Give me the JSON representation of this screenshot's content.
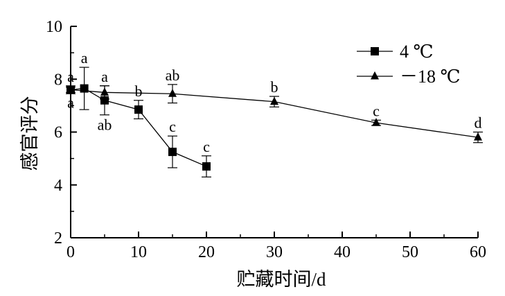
{
  "chart_data": {
    "type": "line",
    "title": "",
    "xlabel": "贮藏时间/d",
    "ylabel": "感官评分",
    "xlim": [
      0,
      60
    ],
    "ylim": [
      2,
      10
    ],
    "xticks": [
      0,
      10,
      20,
      30,
      40,
      50,
      60
    ],
    "yticks": [
      2,
      4,
      6,
      8,
      10
    ],
    "grid": false,
    "legend_position": "top-right",
    "series": [
      {
        "name": "4 ℃",
        "marker": "square",
        "points": [
          {
            "x": 0,
            "y": 7.6,
            "err": 0.15,
            "label": "a",
            "label_pos": "above"
          },
          {
            "x": 2,
            "y": 7.65,
            "err": 0.8,
            "label": "a",
            "label_pos": "above"
          },
          {
            "x": 5,
            "y": 7.2,
            "err": 0.55,
            "label": "ab",
            "label_pos": "below"
          },
          {
            "x": 10,
            "y": 6.85,
            "err": 0.35,
            "label": "b",
            "label_pos": "above"
          },
          {
            "x": 15,
            "y": 5.25,
            "err": 0.6,
            "label": "c",
            "label_pos": "above"
          },
          {
            "x": 20,
            "y": 4.7,
            "err": 0.4,
            "label": "c",
            "label_pos": "above"
          }
        ]
      },
      {
        "name": "－18 ℃",
        "marker": "triangle",
        "points": [
          {
            "x": 0,
            "y": 7.6,
            "err": 0.1,
            "label": "a",
            "label_pos": "below"
          },
          {
            "x": 5,
            "y": 7.5,
            "err": 0.25,
            "label": "a",
            "label_pos": "above"
          },
          {
            "x": 15,
            "y": 7.45,
            "err": 0.35,
            "label": "ab",
            "label_pos": "above"
          },
          {
            "x": 30,
            "y": 7.15,
            "err": 0.2,
            "label": "b",
            "label_pos": "above"
          },
          {
            "x": 45,
            "y": 6.35,
            "err": 0.1,
            "label": "c",
            "label_pos": "above"
          },
          {
            "x": 60,
            "y": 5.8,
            "err": 0.2,
            "label": "d",
            "label_pos": "above"
          }
        ]
      }
    ]
  }
}
